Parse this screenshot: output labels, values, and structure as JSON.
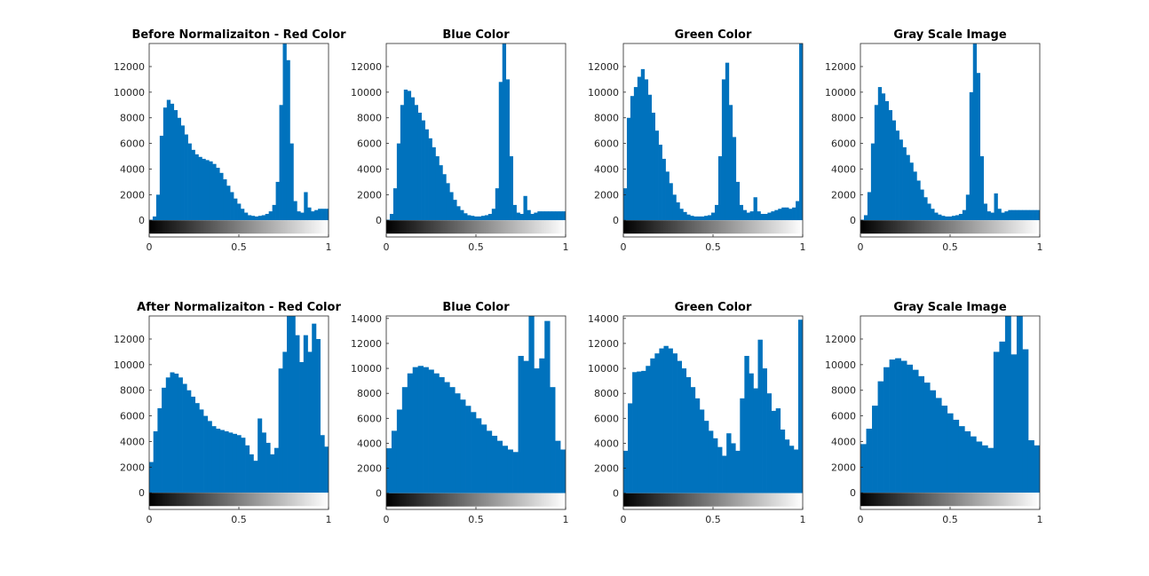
{
  "chart_data": [
    {
      "type": "bar",
      "title": "Before Normalizaiton - Red Color",
      "xlim": [
        0,
        1
      ],
      "ylim": [
        -1300,
        13800
      ],
      "xticks": [
        "0",
        "0.5",
        "1"
      ],
      "yticks": [
        0,
        2000,
        4000,
        6000,
        8000,
        10000,
        12000
      ],
      "y": [
        50,
        300,
        2000,
        6600,
        8800,
        9400,
        9100,
        8600,
        8000,
        7400,
        6700,
        6000,
        5500,
        5150,
        4950,
        4800,
        4700,
        4600,
        4400,
        4100,
        3700,
        3200,
        2700,
        2200,
        1700,
        1300,
        900,
        600,
        400,
        350,
        300,
        350,
        400,
        500,
        700,
        1200,
        3000,
        9000,
        13800,
        12500,
        6000,
        1500,
        700,
        600,
        2200,
        1000,
        700,
        800,
        900,
        900,
        900
      ],
      "colorbar": {
        "ticks": [
          "0",
          "0.5",
          "1"
        ]
      }
    },
    {
      "type": "bar",
      "title": "Blue Color",
      "xlim": [
        0,
        1
      ],
      "ylim": [
        -1300,
        13800
      ],
      "xticks": [
        "0",
        "0.5",
        "1"
      ],
      "yticks": [
        0,
        2000,
        4000,
        6000,
        8000,
        10000,
        12000
      ],
      "y": [
        50,
        500,
        2500,
        6000,
        9000,
        10200,
        10100,
        9600,
        9000,
        8400,
        7800,
        7100,
        6400,
        5700,
        5000,
        4300,
        3600,
        2900,
        2200,
        1600,
        1100,
        800,
        550,
        400,
        350,
        300,
        300,
        350,
        400,
        500,
        900,
        2500,
        10800,
        13800,
        11000,
        5000,
        1200,
        600,
        500,
        1900,
        800,
        500,
        600,
        700,
        700,
        700,
        700,
        700,
        700,
        700,
        700
      ],
      "colorbar": {
        "ticks": [
          "0",
          "0.5",
          "1"
        ]
      }
    },
    {
      "type": "bar",
      "title": "Green Color",
      "xlim": [
        0,
        1
      ],
      "ylim": [
        -1300,
        13800
      ],
      "xticks": [
        "0",
        "0.5",
        "1"
      ],
      "yticks": [
        0,
        2000,
        4000,
        6000,
        8000,
        10000,
        12000
      ],
      "y": [
        2500,
        8000,
        9700,
        10400,
        11200,
        11800,
        11000,
        9800,
        8400,
        7000,
        5900,
        4800,
        3800,
        2900,
        2000,
        1400,
        900,
        650,
        450,
        350,
        300,
        300,
        300,
        350,
        400,
        600,
        1200,
        5000,
        11000,
        12300,
        9000,
        6500,
        3000,
        1200,
        800,
        600,
        700,
        1800,
        700,
        500,
        500,
        600,
        700,
        800,
        900,
        1000,
        1000,
        900,
        1000,
        1500,
        13800
      ],
      "colorbar": {
        "ticks": [
          "0",
          "0.5",
          "1"
        ]
      }
    },
    {
      "type": "bar",
      "title": "Gray Scale Image",
      "xlim": [
        0,
        1
      ],
      "ylim": [
        -1300,
        13800
      ],
      "xticks": [
        "0",
        "0.5",
        "1"
      ],
      "yticks": [
        0,
        2000,
        4000,
        6000,
        8000,
        10000,
        12000
      ],
      "y": [
        50,
        400,
        2200,
        6000,
        9000,
        10400,
        9900,
        9300,
        8600,
        7800,
        7000,
        6300,
        5700,
        5100,
        4500,
        3800,
        3100,
        2400,
        1800,
        1300,
        900,
        600,
        450,
        350,
        300,
        300,
        350,
        400,
        500,
        800,
        2000,
        10000,
        13800,
        11500,
        5000,
        1300,
        700,
        600,
        2100,
        900,
        600,
        700,
        800,
        800,
        800,
        800,
        800,
        800,
        800,
        800,
        800
      ],
      "colorbar": {
        "ticks": [
          "0",
          "0.5",
          "1"
        ]
      }
    },
    {
      "type": "bar",
      "title": "After Normalizaiton - Red Color",
      "xlim": [
        0,
        1
      ],
      "ylim": [
        -1300,
        13800
      ],
      "xticks": [
        "0",
        "0.5",
        "1"
      ],
      "yticks": [
        0,
        2000,
        4000,
        6000,
        8000,
        10000,
        12000
      ],
      "y": [
        2400,
        4800,
        6600,
        8200,
        9000,
        9400,
        9300,
        9000,
        8500,
        8000,
        7500,
        7000,
        6500,
        6000,
        5600,
        5200,
        5000,
        4900,
        4800,
        4700,
        4600,
        4500,
        4300,
        3700,
        3000,
        2500,
        5800,
        4700,
        3900,
        3000,
        3500,
        9700,
        11000,
        13800,
        13800,
        12300,
        10200,
        12300,
        11000,
        13200,
        12000,
        4500,
        3600
      ],
      "colorbar": {
        "ticks": [
          "0",
          "0.5",
          "1"
        ]
      }
    },
    {
      "type": "bar",
      "title": "Blue Color",
      "xlim": [
        0,
        1
      ],
      "ylim": [
        -1300,
        14200
      ],
      "xticks": [
        "0",
        "0.5",
        "1"
      ],
      "yticks": [
        0,
        2000,
        4000,
        6000,
        8000,
        10000,
        12000,
        14000
      ],
      "y": [
        3600,
        5000,
        6700,
        8500,
        9600,
        10100,
        10200,
        10100,
        9900,
        9600,
        9300,
        8900,
        8500,
        8000,
        7500,
        7000,
        6500,
        6000,
        5500,
        5000,
        4600,
        4200,
        3800,
        3500,
        3300,
        11000,
        10600,
        14200,
        10000,
        10800,
        13800,
        8500,
        4200,
        3500
      ],
      "colorbar": {
        "ticks": [
          "0",
          "0.5",
          "1"
        ]
      }
    },
    {
      "type": "bar",
      "title": "Green Color",
      "xlim": [
        0,
        1
      ],
      "ylim": [
        -1300,
        14200
      ],
      "xticks": [
        "0",
        "0.5",
        "1"
      ],
      "yticks": [
        0,
        2000,
        4000,
        6000,
        8000,
        10000,
        12000,
        14000
      ],
      "y": [
        3400,
        7200,
        9700,
        9750,
        9800,
        10200,
        10800,
        11200,
        11600,
        11800,
        11600,
        11200,
        10600,
        10000,
        9300,
        8500,
        7600,
        6700,
        5800,
        5000,
        4400,
        3700,
        3000,
        4800,
        4000,
        3400,
        7600,
        11000,
        9600,
        8400,
        12300,
        10000,
        8000,
        6600,
        6800,
        5100,
        4300,
        3800,
        3500,
        13900
      ],
      "colorbar": {
        "ticks": [
          "0",
          "0.5",
          "1"
        ]
      }
    },
    {
      "type": "bar",
      "title": "Gray Scale Image",
      "xlim": [
        0,
        1
      ],
      "ylim": [
        -1300,
        13800
      ],
      "xticks": [
        "0",
        "0.5",
        "1"
      ],
      "yticks": [
        0,
        2000,
        4000,
        6000,
        8000,
        10000,
        12000
      ],
      "y": [
        3800,
        5000,
        6800,
        8700,
        9800,
        10400,
        10500,
        10300,
        10000,
        9600,
        9100,
        8600,
        8000,
        7400,
        6800,
        6200,
        5700,
        5200,
        4800,
        4400,
        4000,
        3700,
        3500,
        11000,
        11800,
        13800,
        10800,
        13800,
        11200,
        4100,
        3700
      ],
      "colorbar": {
        "ticks": [
          "0",
          "0.5",
          "1"
        ]
      }
    }
  ]
}
